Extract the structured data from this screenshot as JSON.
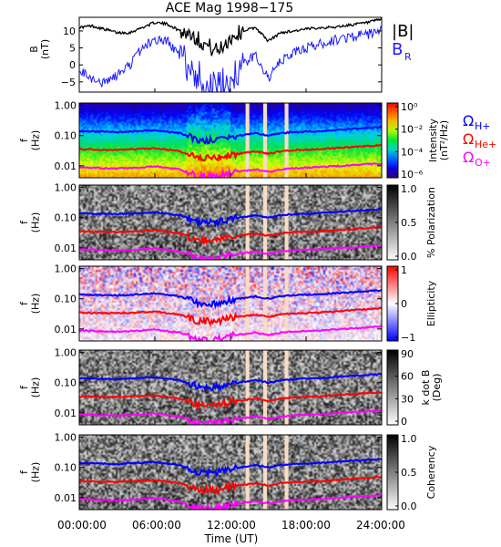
{
  "title": "ACE Mag 1998−175",
  "x_axis": {
    "label": "Time (UT)",
    "ticks": [
      "00:00:00",
      "06:00:00",
      "12:00:00",
      "18:00:00",
      "24:00:00"
    ],
    "range_hours": [
      0,
      24
    ]
  },
  "colors": {
    "B_total": "#000000",
    "B_R": "#1a1aff",
    "f_H": "#0000ff",
    "f_He": "#ff0000",
    "f_O": "#ff00ff",
    "data_gap": "#f8dcc6"
  },
  "panels": [
    {
      "ylabel": "B\n(nT)",
      "yticks": [
        "10",
        "5",
        "0",
        "−5"
      ],
      "legend": [
        "|B|",
        "B",
        "R"
      ]
    },
    {
      "ylabel": "f\n(Hz)",
      "yticks": [
        "1.00",
        "0.10",
        "0.01"
      ],
      "colorbar_label": "Intensity\n(nT²/Hz)",
      "colorbar_ticks": [
        "10⁰",
        "10⁻²",
        "10⁻⁴",
        "10⁻⁶"
      ],
      "colormap": "rainbow",
      "legend": [
        "Ω",
        "H+",
        "Ω",
        "He+",
        "Ω",
        "O+"
      ]
    },
    {
      "ylabel": "f\n(Hz)",
      "yticks": [
        "1.00",
        "0.10",
        "0.01"
      ],
      "colorbar_label": "% Polarization",
      "colorbar_ticks": [
        "1.0",
        "0.5",
        "0.0"
      ],
      "colormap": "gray"
    },
    {
      "ylabel": "f\n(Hz)",
      "yticks": [
        "1.00",
        "0.10",
        "0.01"
      ],
      "colorbar_label": "Ellipticity",
      "colorbar_ticks": [
        "1",
        "0",
        "−1"
      ],
      "colormap": "red-white-blue"
    },
    {
      "ylabel": "f\n(Hz)",
      "yticks": [
        "1.00",
        "0.10",
        "0.01"
      ],
      "colorbar_label": "k dot B\n(Deg)",
      "colorbar_ticks": [
        "90",
        "60",
        "30",
        "0"
      ],
      "colormap": "gray"
    },
    {
      "ylabel": "f\n(Hz)",
      "yticks": [
        "1.00",
        "0.10",
        "0.01"
      ],
      "colorbar_label": "Coherency",
      "colorbar_ticks": [
        "1.0",
        "0.5",
        "0.0"
      ],
      "colormap": "gray"
    }
  ],
  "chart_data": [
    {
      "type": "line",
      "title": "ACE Mag 1998−175",
      "xlabel": "Time (UT)",
      "ylabel": "B (nT)",
      "ylim": [
        -8,
        14
      ],
      "x": [
        0,
        1,
        2,
        3,
        4,
        5,
        6,
        7,
        8,
        9,
        10,
        11,
        12,
        13,
        14,
        15,
        16,
        17,
        18,
        19,
        20,
        21,
        22,
        23,
        24
      ],
      "series": [
        {
          "name": "|B|",
          "values": [
            11,
            11.5,
            10.5,
            9.5,
            9.5,
            11,
            12.5,
            12,
            10,
            9,
            6,
            4,
            8,
            10,
            11,
            7,
            9.5,
            10,
            10.5,
            11,
            11,
            11.5,
            12,
            12.5,
            13.5
          ]
        },
        {
          "name": "B_R",
          "values": [
            -2,
            -4,
            -5.5,
            -3,
            0,
            5,
            7.5,
            7,
            2.5,
            -2,
            -5,
            -7,
            -4,
            0,
            3,
            -4,
            1,
            3.5,
            5,
            6,
            7,
            8,
            8.5,
            9,
            10
          ]
        }
      ]
    },
    {
      "type": "heatmap",
      "xlabel": "Time (UT)",
      "ylabel": "f (Hz)",
      "ylim": [
        0.004,
        1.2
      ],
      "yscale": "log",
      "zlabel": "Intensity (nT^2/Hz)",
      "zscale": "log",
      "zlim": [
        1e-06,
        1
      ],
      "overlay_series": [
        {
          "name": "H+",
          "x": [
            0,
            3,
            6,
            8,
            9.5,
            11,
            12,
            14,
            15,
            16,
            17,
            19,
            21,
            24
          ],
          "values": [
            0.14,
            0.13,
            0.15,
            0.12,
            0.07,
            0.07,
            0.09,
            0.12,
            0.1,
            0.12,
            0.13,
            0.14,
            0.16,
            0.19
          ]
        },
        {
          "name": "He+",
          "x": [
            0,
            3,
            6,
            8,
            9.5,
            11,
            12,
            14,
            15,
            16,
            17,
            19,
            21,
            24
          ],
          "values": [
            0.035,
            0.033,
            0.038,
            0.03,
            0.018,
            0.018,
            0.023,
            0.03,
            0.025,
            0.03,
            0.033,
            0.035,
            0.04,
            0.048
          ]
        },
        {
          "name": "O+",
          "x": [
            0,
            3,
            6,
            8,
            9.5,
            11,
            12,
            14,
            15,
            16,
            17,
            19,
            21,
            24
          ],
          "values": [
            0.009,
            0.008,
            0.0095,
            0.0075,
            0.0045,
            0.0045,
            0.006,
            0.0075,
            0.0063,
            0.0075,
            0.0083,
            0.009,
            0.01,
            0.012
          ]
        }
      ],
      "data_gaps_hours": [
        [
          13.2,
          13.5
        ],
        [
          14.6,
          14.9
        ],
        [
          16.3,
          16.6
        ]
      ]
    },
    {
      "type": "heatmap",
      "xlabel": "Time (UT)",
      "ylabel": "f (Hz)",
      "yscale": "log",
      "zlabel": "% Polarization",
      "zlim": [
        0,
        1
      ]
    },
    {
      "type": "heatmap",
      "xlabel": "Time (UT)",
      "ylabel": "f (Hz)",
      "yscale": "log",
      "zlabel": "Ellipticity",
      "zlim": [
        -1,
        1
      ]
    },
    {
      "type": "heatmap",
      "xlabel": "Time (UT)",
      "ylabel": "f (Hz)",
      "yscale": "log",
      "zlabel": "k dot B (Deg)",
      "zlim": [
        0,
        90
      ]
    },
    {
      "type": "heatmap",
      "xlabel": "Time (UT)",
      "ylabel": "f (Hz)",
      "yscale": "log",
      "zlabel": "Coherency",
      "zlim": [
        0,
        1
      ]
    }
  ]
}
